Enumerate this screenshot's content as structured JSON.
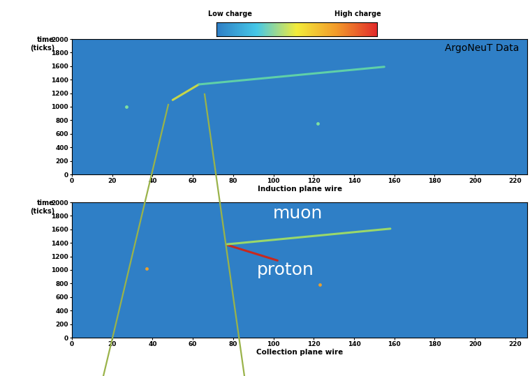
{
  "chart_data": [
    {
      "type": "event_display",
      "x_label": "Induction plane wire",
      "y_label": "time\n(ticks)",
      "color": "#2f7fc6",
      "xlim": [
        0,
        226
      ],
      "xticks": [
        0,
        20,
        40,
        60,
        80,
        100,
        120,
        140,
        160,
        180,
        200,
        220
      ],
      "ylim": [
        0,
        2000
      ],
      "yticks": [
        0,
        200,
        400,
        600,
        800,
        1000,
        1200,
        1400,
        1600,
        1800,
        2000
      ],
      "segments": [
        {
          "x": [
            50,
            63
          ],
          "y": [
            1100,
            1330
          ],
          "color": "#c6d64a"
        },
        {
          "x": [
            63,
            155
          ],
          "y": [
            1330,
            1590
          ],
          "color": "#5fd0a8"
        }
      ],
      "points": {
        "x": [
          27,
          122
        ],
        "y": [
          1000,
          750
        ],
        "color": "#7fe0a0"
      },
      "annotations": [
        {
          "text": "ArgoNeuT Data",
          "x": 222,
          "y": 1940,
          "color": "#000000"
        }
      ],
      "colorbar": {
        "low_label": "Low charge",
        "high_label": "High charge",
        "colors": [
          "#2f7fc6",
          "#45c8e8",
          "#f4ec3a",
          "#f39a2a",
          "#e22b2b"
        ]
      }
    },
    {
      "type": "event_display",
      "x_label": "Collection plane wire",
      "y_label": "time\n(ticks)",
      "color": "#2f7fc6",
      "xlim": [
        0,
        226
      ],
      "xticks": [
        0,
        20,
        40,
        60,
        80,
        100,
        120,
        140,
        160,
        180,
        200,
        220
      ],
      "ylim": [
        0,
        2000
      ],
      "yticks": [
        0,
        200,
        400,
        600,
        800,
        1000,
        1200,
        1400,
        1600,
        1800,
        2000
      ],
      "segments": [
        {
          "x": [
            77,
            102
          ],
          "y": [
            1370,
            1140
          ],
          "color": "#c8281e"
        },
        {
          "x": [
            77,
            158
          ],
          "y": [
            1380,
            1610
          ],
          "color": "#9ad86a"
        }
      ],
      "points": {
        "x": [
          37,
          123
        ],
        "y": [
          1020,
          780
        ],
        "color": "#e8a030"
      },
      "annotations": [
        {
          "text": "muon",
          "x": 112,
          "y": 1830,
          "color": "#ffffff"
        },
        {
          "text": "proton",
          "x": 106,
          "y": 1000,
          "color": "#ffffff"
        }
      ]
    }
  ]
}
